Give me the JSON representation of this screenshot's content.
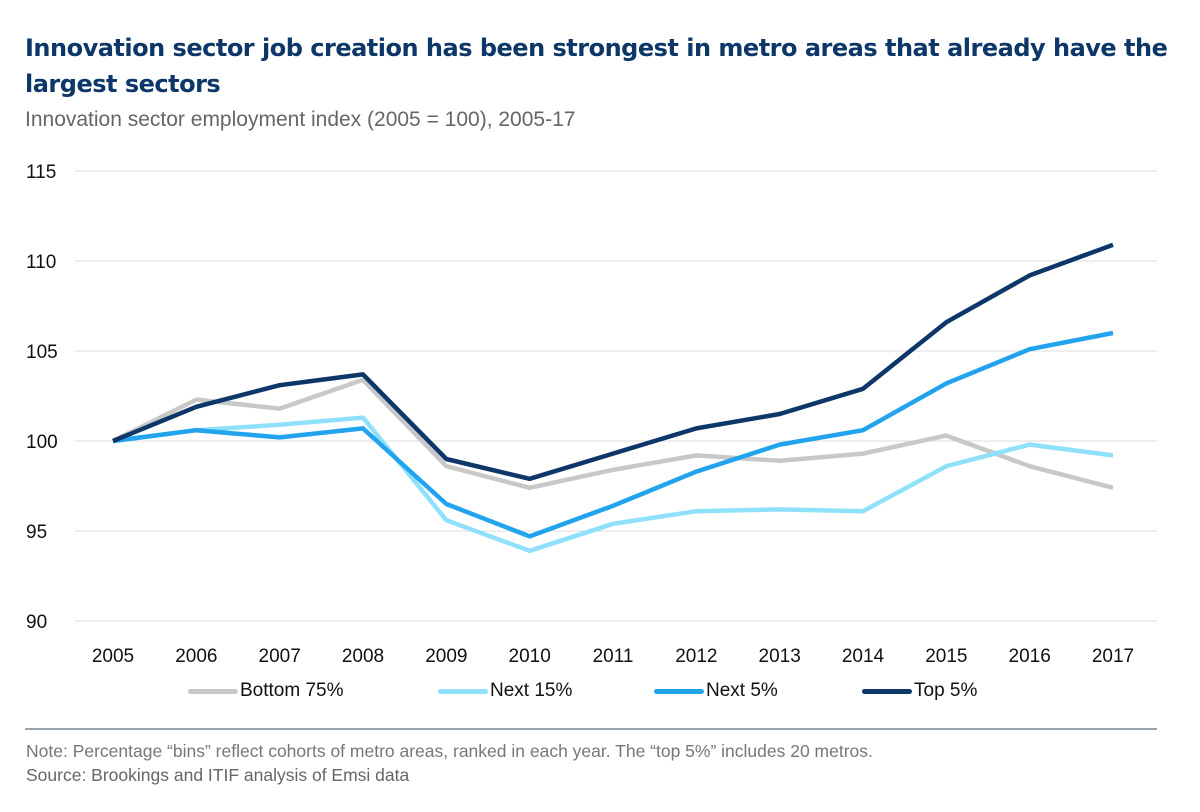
{
  "chart_data": {
    "type": "line",
    "title": "Innovation sector job creation has been strongest in metro areas that already have the largest sectors",
    "subtitle": "Innovation sector employment index (2005 = 100), 2005-17",
    "xlabel": "",
    "ylabel": "",
    "x": [
      "2005",
      "2006",
      "2007",
      "2008",
      "2009",
      "2010",
      "2011",
      "2012",
      "2013",
      "2014",
      "2015",
      "2016",
      "2017"
    ],
    "ylim": [
      90,
      115
    ],
    "yticks": [
      "90",
      "95",
      "100",
      "105",
      "110",
      "115"
    ],
    "grid": true,
    "legend_position": "bottom",
    "series": [
      {
        "name": "Bottom 75%",
        "color": "#c8c8c8",
        "values": [
          100,
          102.3,
          101.8,
          103.4,
          98.6,
          97.4,
          98.4,
          99.2,
          98.9,
          99.3,
          100.3,
          98.6,
          97.4
        ]
      },
      {
        "name": "Next 15%",
        "color": "#8fe1fb",
        "values": [
          100,
          100.6,
          100.9,
          101.3,
          95.6,
          93.9,
          95.4,
          96.1,
          96.2,
          96.1,
          98.6,
          99.8,
          99.2
        ]
      },
      {
        "name": "Next 5%",
        "color": "#22a3ee",
        "values": [
          100,
          100.6,
          100.2,
          100.7,
          96.5,
          94.7,
          96.4,
          98.3,
          99.8,
          100.6,
          103.2,
          105.1,
          106.0
        ]
      },
      {
        "name": "Top 5%",
        "color": "#0d3768",
        "values": [
          100,
          101.9,
          103.1,
          103.7,
          99.0,
          97.9,
          99.3,
          100.7,
          101.5,
          102.9,
          106.6,
          109.2,
          110.9
        ]
      }
    ]
  },
  "footer": {
    "note": "Note: Percentage “bins” reflect cohorts of metro areas, ranked in each year. The “top 5%” includes 20 metros.",
    "source": "Source: Brookings and ITIF analysis of Emsi data"
  }
}
